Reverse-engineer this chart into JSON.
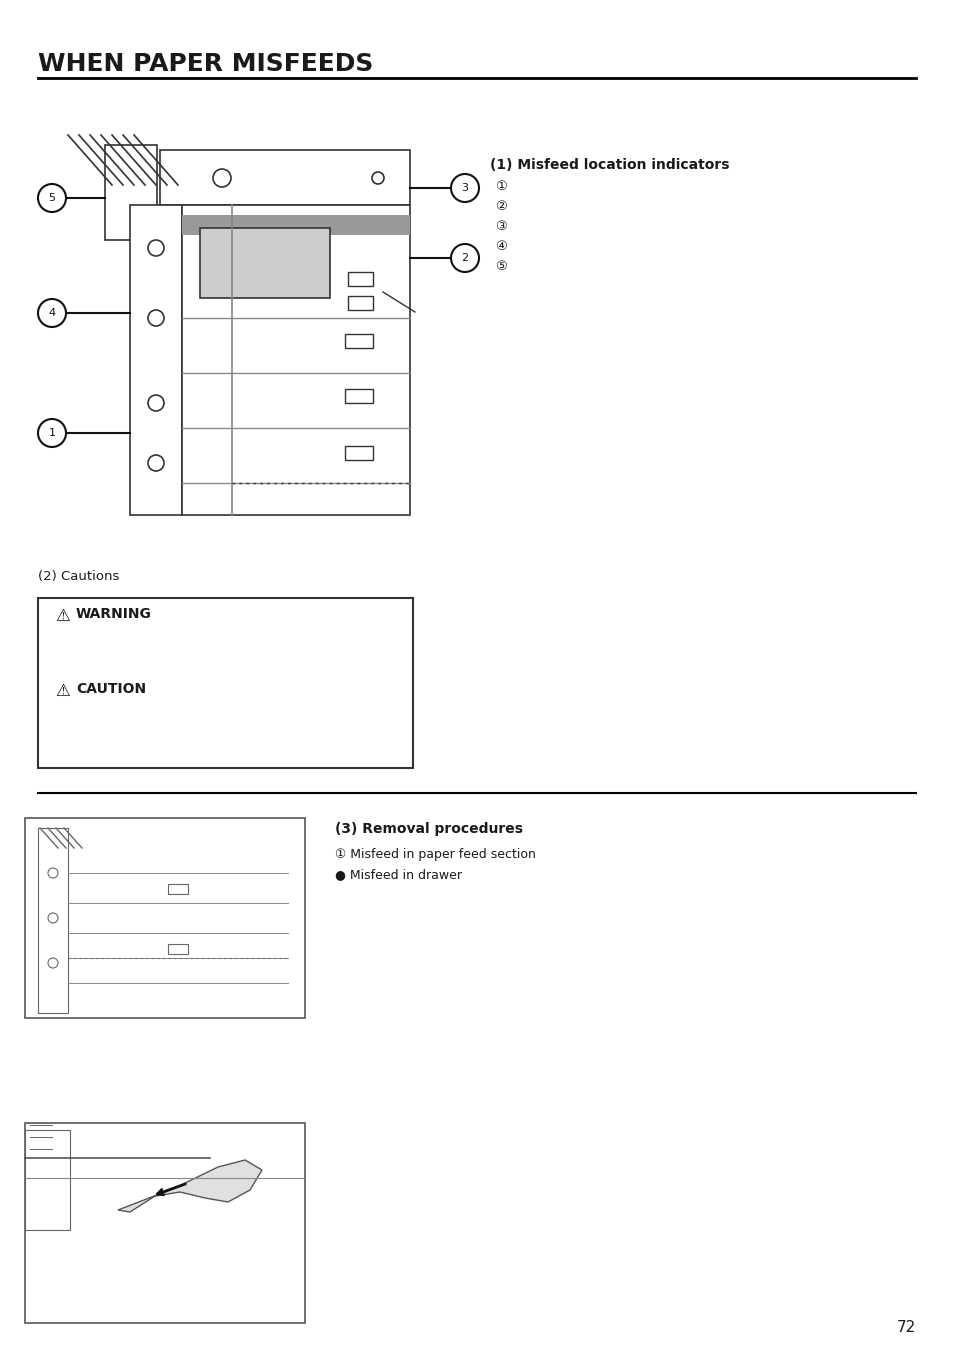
{
  "title": "WHEN PAPER MISFEEDS",
  "title_fontsize": 18,
  "title_fontweight": "bold",
  "bg_color": "#ffffff",
  "text_color": "#1a1a1a",
  "section1_title": "(1) Misfeed location indicators",
  "section1_items": [
    "①",
    "②",
    "③",
    "④",
    "⑤"
  ],
  "section2_title": "(2) Cautions",
  "warning_label": "WARNING",
  "caution_label": "CAUTION",
  "section3_title": "(3) Removal procedures",
  "section3_item1": "① Misfeed in paper feed section",
  "section3_item2": "● Misfeed in drawer",
  "page_number": "72",
  "line_color": "#000000",
  "dark_color": "#333333",
  "mid_color": "#888888"
}
